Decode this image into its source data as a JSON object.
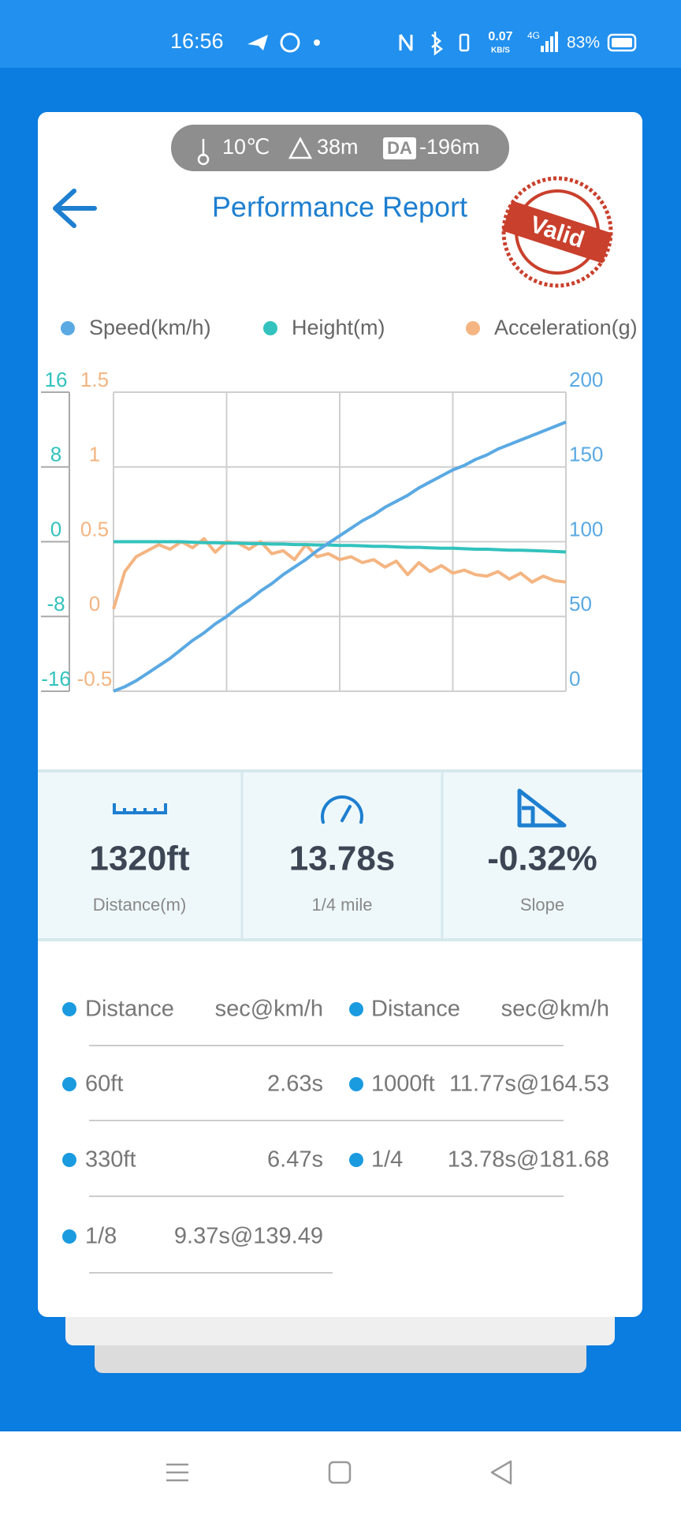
{
  "status_bar": {
    "time": "16:56",
    "net_speed": "0.07",
    "net_unit": "KB/S",
    "network": "4G",
    "battery": "83%"
  },
  "header": {
    "temperature": "10℃",
    "altitude": "38m",
    "da_badge": "DA",
    "density_altitude": "-196m",
    "title": "Performance Report",
    "stamp": "Valid"
  },
  "chart_data": {
    "type": "line",
    "categories": [
      null,
      null,
      null,
      null,
      null,
      null,
      null,
      null,
      null,
      null,
      null,
      null,
      null,
      null,
      null,
      null,
      null,
      null,
      null,
      null,
      null,
      null,
      null,
      null,
      null,
      null,
      null,
      null,
      null,
      null,
      null,
      null,
      null,
      null,
      null,
      null,
      null,
      null,
      null,
      null,
      null
    ],
    "series": [
      {
        "name": "Speed(km/h)",
        "color": "#5aa9e3",
        "axis": "y2",
        "values": [
          0,
          3,
          7,
          12,
          17,
          22,
          28,
          34,
          39,
          45,
          50,
          56,
          61,
          67,
          72,
          78,
          83,
          88,
          94,
          99,
          104,
          109,
          114,
          118,
          123,
          127,
          131,
          136,
          140,
          144,
          148,
          151,
          155,
          158,
          162,
          165,
          168,
          171,
          174,
          177,
          180
        ]
      },
      {
        "name": "Height(m)",
        "color": "#33c2bd",
        "axis": "y",
        "values": [
          0,
          0,
          0,
          0,
          0,
          0,
          0,
          -0.05,
          -0.1,
          -0.1,
          -0.15,
          -0.15,
          -0.2,
          -0.2,
          -0.25,
          -0.25,
          -0.3,
          -0.3,
          -0.35,
          -0.35,
          -0.4,
          -0.4,
          -0.45,
          -0.5,
          -0.5,
          -0.55,
          -0.6,
          -0.6,
          -0.65,
          -0.7,
          -0.7,
          -0.75,
          -0.8,
          -0.8,
          -0.85,
          -0.9,
          -0.9,
          -0.95,
          -1.0,
          -1.05,
          -1.1
        ]
      },
      {
        "name": "Acceleration(g)",
        "color": "#f4b582",
        "axis": "y3",
        "values": [
          0.05,
          0.3,
          0.4,
          0.44,
          0.48,
          0.45,
          0.5,
          0.46,
          0.52,
          0.43,
          0.5,
          0.49,
          0.45,
          0.5,
          0.42,
          0.44,
          0.38,
          0.48,
          0.4,
          0.42,
          0.38,
          0.4,
          0.36,
          0.38,
          0.33,
          0.37,
          0.28,
          0.36,
          0.3,
          0.34,
          0.29,
          0.31,
          0.28,
          0.27,
          0.3,
          0.25,
          0.29,
          0.23,
          0.27,
          0.24,
          0.23
        ]
      }
    ],
    "ylim": [
      -16,
      16
    ],
    "yticks": [
      -16,
      -8,
      0,
      8,
      16
    ],
    "y2lim": [
      0,
      200
    ],
    "y2ticks": [
      0,
      50,
      100,
      150,
      200
    ],
    "y3lim": [
      -0.5,
      1.5
    ],
    "y3ticks": [
      -0.5,
      0,
      0.5,
      1,
      1.5
    ],
    "grid": true
  },
  "stats": [
    {
      "value": "1320ft",
      "label": "Distance(m)"
    },
    {
      "value": "13.78s",
      "label": "1/4 mile"
    },
    {
      "value": "-0.32%",
      "label": "Slope"
    }
  ],
  "table": {
    "header": [
      "Distance",
      "sec@km/h",
      "Distance",
      "sec@km/h"
    ],
    "rows": [
      [
        "60ft",
        "2.63s",
        "1000ft",
        "11.77s@164.53"
      ],
      [
        "330ft",
        "6.47s",
        "1/4",
        "13.78s@181.68"
      ],
      [
        "1/8",
        "9.37s@139.49"
      ]
    ]
  }
}
